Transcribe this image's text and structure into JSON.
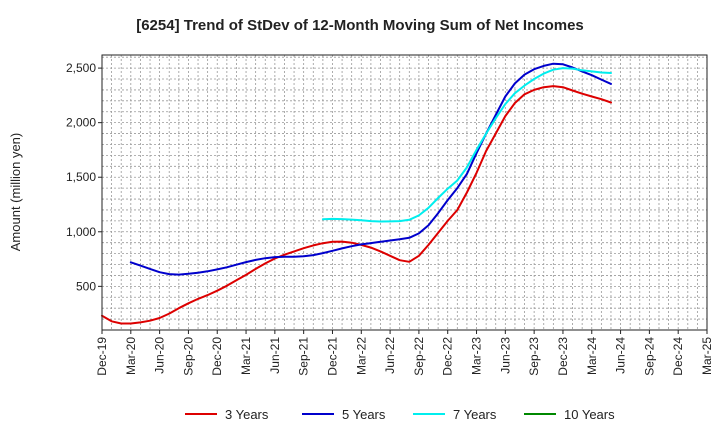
{
  "chart_data": {
    "type": "line",
    "title": "[6254]  Trend of StDev of 12-Month Moving Sum of Net Incomes",
    "xlabel": "",
    "ylabel": "Amount (million yen)",
    "ylim": [
      100,
      2620
    ],
    "yticks": [
      500,
      1000,
      1500,
      2000,
      2500
    ],
    "ytick_labels": [
      "500",
      "1,000",
      "1,500",
      "2,000",
      "2,500"
    ],
    "xticks": [
      "Dec-19",
      "Mar-20",
      "Jun-20",
      "Sep-20",
      "Dec-20",
      "Mar-21",
      "Jun-21",
      "Sep-21",
      "Dec-21",
      "Mar-22",
      "Jun-22",
      "Sep-22",
      "Dec-22",
      "Mar-23",
      "Jun-23",
      "Sep-23",
      "Dec-23",
      "Mar-24",
      "Jun-24",
      "Sep-24",
      "Dec-24",
      "Mar-25"
    ],
    "grid": true,
    "legend_position": "bottom",
    "series": [
      {
        "name": "3 Years",
        "color": "#dd0000",
        "points": [
          [
            0,
            230
          ],
          [
            1,
            180
          ],
          [
            2,
            160
          ],
          [
            3,
            160
          ],
          [
            4,
            170
          ],
          [
            5,
            185
          ],
          [
            6,
            210
          ],
          [
            7,
            250
          ],
          [
            8,
            300
          ],
          [
            9,
            345
          ],
          [
            10,
            385
          ],
          [
            11,
            420
          ],
          [
            12,
            460
          ],
          [
            13,
            505
          ],
          [
            14,
            555
          ],
          [
            15,
            605
          ],
          [
            16,
            660
          ],
          [
            17,
            710
          ],
          [
            18,
            755
          ],
          [
            19,
            790
          ],
          [
            20,
            820
          ],
          [
            21,
            850
          ],
          [
            22,
            875
          ],
          [
            23,
            895
          ],
          [
            24,
            908
          ],
          [
            25,
            910
          ],
          [
            26,
            900
          ],
          [
            27,
            880
          ],
          [
            28,
            855
          ],
          [
            29,
            820
          ],
          [
            30,
            780
          ],
          [
            31,
            740
          ],
          [
            32,
            725
          ],
          [
            33,
            780
          ],
          [
            34,
            880
          ],
          [
            35,
            990
          ],
          [
            36,
            1100
          ],
          [
            37,
            1200
          ],
          [
            38,
            1360
          ],
          [
            39,
            1540
          ],
          [
            40,
            1740
          ],
          [
            41,
            1900
          ],
          [
            42,
            2060
          ],
          [
            43,
            2180
          ],
          [
            44,
            2260
          ],
          [
            45,
            2300
          ],
          [
            46,
            2325
          ],
          [
            47,
            2335
          ],
          [
            48,
            2325
          ],
          [
            49,
            2295
          ],
          [
            50,
            2265
          ],
          [
            51,
            2240
          ],
          [
            52,
            2215
          ],
          [
            53,
            2185
          ]
        ]
      },
      {
        "name": "5 Years",
        "color": "#0000cc",
        "points": [
          [
            3,
            720
          ],
          [
            4,
            690
          ],
          [
            5,
            660
          ],
          [
            6,
            630
          ],
          [
            7,
            612
          ],
          [
            8,
            608
          ],
          [
            9,
            615
          ],
          [
            10,
            625
          ],
          [
            11,
            638
          ],
          [
            12,
            655
          ],
          [
            13,
            675
          ],
          [
            14,
            698
          ],
          [
            15,
            722
          ],
          [
            16,
            742
          ],
          [
            17,
            758
          ],
          [
            18,
            768
          ],
          [
            19,
            772
          ],
          [
            20,
            772
          ],
          [
            21,
            775
          ],
          [
            22,
            786
          ],
          [
            23,
            805
          ],
          [
            24,
            826
          ],
          [
            25,
            848
          ],
          [
            26,
            868
          ],
          [
            27,
            884
          ],
          [
            28,
            896
          ],
          [
            29,
            908
          ],
          [
            30,
            920
          ],
          [
            31,
            932
          ],
          [
            32,
            945
          ],
          [
            33,
            985
          ],
          [
            34,
            1060
          ],
          [
            35,
            1170
          ],
          [
            36,
            1290
          ],
          [
            37,
            1400
          ],
          [
            38,
            1530
          ],
          [
            39,
            1720
          ],
          [
            40,
            1900
          ],
          [
            41,
            2070
          ],
          [
            42,
            2240
          ],
          [
            43,
            2360
          ],
          [
            44,
            2440
          ],
          [
            45,
            2490
          ],
          [
            46,
            2520
          ],
          [
            47,
            2540
          ],
          [
            48,
            2535
          ],
          [
            49,
            2505
          ],
          [
            50,
            2470
          ],
          [
            51,
            2435
          ],
          [
            52,
            2395
          ],
          [
            53,
            2355
          ]
        ]
      },
      {
        "name": "7 Years",
        "color": "#00eeee",
        "points": [
          [
            23,
            1115
          ],
          [
            24,
            1118
          ],
          [
            25,
            1116
          ],
          [
            26,
            1112
          ],
          [
            27,
            1105
          ],
          [
            28,
            1098
          ],
          [
            29,
            1094
          ],
          [
            30,
            1095
          ],
          [
            31,
            1098
          ],
          [
            32,
            1110
          ],
          [
            33,
            1150
          ],
          [
            34,
            1220
          ],
          [
            35,
            1310
          ],
          [
            36,
            1395
          ],
          [
            37,
            1470
          ],
          [
            38,
            1590
          ],
          [
            39,
            1750
          ],
          [
            40,
            1900
          ],
          [
            41,
            2040
          ],
          [
            42,
            2170
          ],
          [
            43,
            2270
          ],
          [
            44,
            2340
          ],
          [
            45,
            2400
          ],
          [
            46,
            2450
          ],
          [
            47,
            2485
          ],
          [
            48,
            2500
          ],
          [
            49,
            2495
          ],
          [
            50,
            2480
          ],
          [
            51,
            2470
          ],
          [
            52,
            2460
          ],
          [
            53,
            2455
          ]
        ]
      },
      {
        "name": "10 Years",
        "color": "#008800",
        "points": []
      }
    ]
  }
}
